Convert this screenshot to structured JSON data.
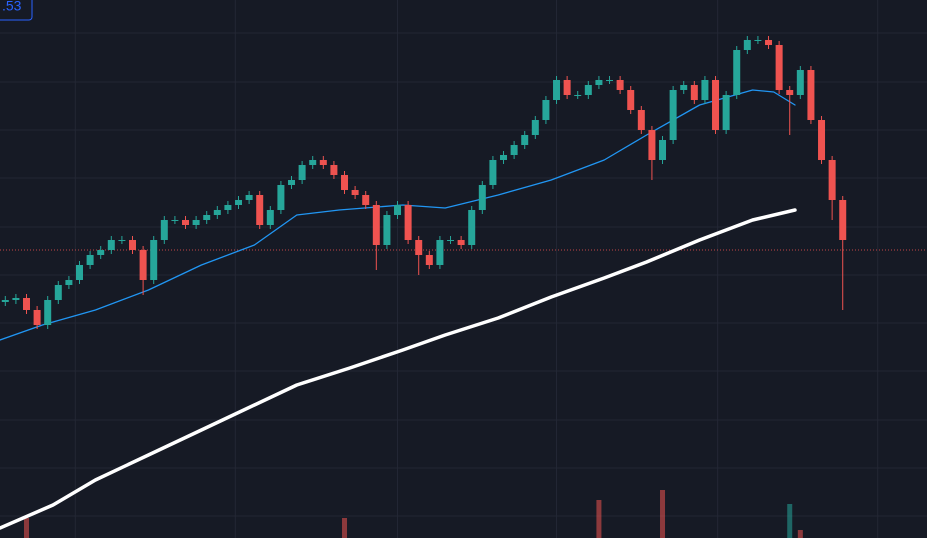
{
  "chart_data": {
    "type": "candlestick",
    "price_label": ".53",
    "xlim": [
      0,
      87.45
    ],
    "ylim": [
      0,
      538
    ],
    "xgrid": [
      7.1,
      22.2,
      37.5,
      52.5,
      67.7,
      82.8
    ],
    "ygrid": [
      505,
      456,
      408,
      360,
      311,
      263,
      215,
      167,
      118,
      70,
      22
    ],
    "up_color": "#26a69a",
    "down_color": "#ef5350",
    "last_price": 288,
    "open": [
      236,
      238,
      240,
      228,
      213,
      238,
      253,
      258,
      273,
      283,
      288,
      298,
      298,
      288,
      258,
      298,
      318,
      318,
      313,
      318,
      323,
      328,
      333,
      338,
      343,
      313,
      328,
      353,
      358,
      373,
      378,
      373,
      363,
      348,
      343,
      333,
      293,
      323,
      333,
      298,
      283,
      273,
      298,
      298,
      293,
      328,
      353,
      378,
      383,
      393,
      403,
      418,
      438,
      458,
      443,
      443,
      453,
      458,
      458,
      448,
      428,
      408,
      378,
      398,
      448,
      453,
      438,
      458,
      408,
      443,
      488,
      498,
      498,
      493,
      448,
      443,
      468,
      418,
      378,
      338
    ],
    "high": [
      242,
      244,
      244,
      232,
      242,
      257,
      262,
      277,
      287,
      292,
      302,
      302,
      302,
      292,
      302,
      322,
      322,
      322,
      322,
      327,
      332,
      337,
      342,
      347,
      347,
      332,
      357,
      362,
      377,
      382,
      382,
      377,
      367,
      352,
      347,
      337,
      327,
      337,
      337,
      302,
      287,
      302,
      302,
      302,
      332,
      357,
      382,
      387,
      397,
      407,
      422,
      442,
      462,
      462,
      447,
      457,
      462,
      462,
      462,
      452,
      432,
      412,
      402,
      452,
      457,
      457,
      462,
      462,
      447,
      492,
      502,
      502,
      502,
      497,
      452,
      472,
      472,
      422,
      382,
      342
    ],
    "low": [
      232,
      234,
      224,
      209,
      209,
      234,
      249,
      254,
      269,
      279,
      284,
      294,
      284,
      243,
      254,
      294,
      314,
      309,
      309,
      314,
      319,
      324,
      329,
      334,
      309,
      309,
      324,
      349,
      354,
      369,
      369,
      359,
      344,
      339,
      329,
      268,
      289,
      319,
      294,
      263,
      269,
      269,
      294,
      289,
      289,
      324,
      349,
      374,
      379,
      389,
      399,
      414,
      434,
      439,
      439,
      439,
      449,
      454,
      444,
      424,
      404,
      358,
      374,
      394,
      444,
      434,
      434,
      404,
      404,
      439,
      484,
      494,
      489,
      444,
      403,
      439,
      414,
      374,
      318,
      228
    ],
    "close": [
      238,
      240,
      228,
      213,
      238,
      253,
      258,
      273,
      283,
      288,
      298,
      298,
      288,
      258,
      298,
      318,
      318,
      313,
      318,
      323,
      328,
      333,
      338,
      343,
      313,
      328,
      353,
      358,
      373,
      378,
      373,
      363,
      348,
      343,
      333,
      293,
      323,
      333,
      298,
      283,
      273,
      298,
      298,
      293,
      328,
      353,
      378,
      383,
      393,
      403,
      418,
      438,
      458,
      443,
      443,
      453,
      458,
      458,
      448,
      428,
      408,
      378,
      398,
      448,
      453,
      438,
      458,
      408,
      443,
      488,
      498,
      498,
      493,
      448,
      443,
      468,
      418,
      378,
      338,
      298
    ],
    "moving_averages": [
      {
        "color": "#2196f3",
        "width": 1.3,
        "x": [
          0,
          4,
          9,
          14,
          19,
          24,
          28,
          32,
          38,
          42,
          47,
          52,
          57,
          61,
          66,
          71,
          73,
          75
        ],
        "values": [
          198,
          213,
          228,
          248,
          273,
          293,
          323,
          328,
          333,
          330,
          343,
          358,
          378,
          403,
          433,
          448,
          446,
          433
        ]
      },
      {
        "color": "#ffffff",
        "width": 3.5,
        "x": [
          0,
          5,
          9,
          14,
          19,
          24,
          28,
          33,
          38,
          42,
          47,
          52,
          57,
          61,
          66,
          71,
          75
        ],
        "values": [
          10,
          33,
          58,
          83,
          108,
          133,
          153,
          170,
          188,
          203,
          220,
          241,
          260,
          276,
          298,
          318,
          328
        ]
      }
    ],
    "volume": {
      "x": [
        3,
        33,
        57,
        63,
        75,
        76
      ],
      "values": [
        20,
        20,
        38,
        48,
        34,
        8
      ],
      "colors": [
        "#ef5350",
        "#ef5350",
        "#ef5350",
        "#ef5350",
        "#26a69a",
        "#ef5350"
      ]
    }
  }
}
